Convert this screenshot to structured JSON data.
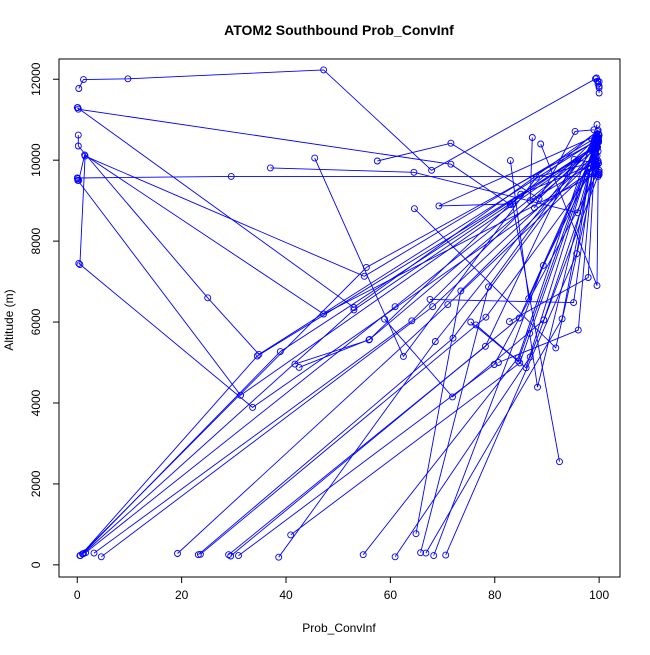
{
  "chart_data": {
    "type": "line",
    "title": "ATOM2 Southbound Prob_ConvInf",
    "xlabel": "Prob_ConvInf",
    "ylabel": "Altitude (m)",
    "xlim": [
      -3.5,
      104
    ],
    "ylim": [
      -300,
      12500
    ],
    "x_ticks": [
      0,
      20,
      40,
      60,
      80,
      100
    ],
    "y_ticks": [
      0,
      2000,
      4000,
      6000,
      8000,
      10000,
      12000
    ],
    "x_tick_labels": [
      "0",
      "20",
      "40",
      "60",
      "80",
      "100"
    ],
    "y_tick_labels": [
      "0",
      "2000",
      "4000",
      "6000",
      "8000",
      "10000",
      "12000"
    ],
    "grid": false,
    "legend": "none",
    "marker": "open-circle",
    "color": "#0000ff",
    "series": [
      {
        "x": [
          0.3,
          1.2,
          9.7,
          47.2,
          67.9,
          99.3,
          99.7,
          99.5,
          100.0,
          99.8,
          100.0,
          100.0,
          100.0
        ],
        "y": [
          11770,
          11990,
          12010,
          12230,
          9750,
          12010,
          11950,
          12030,
          11940,
          11880,
          11830,
          11790,
          11660
        ]
      },
      {
        "x": [
          0.1,
          0.2,
          71.6,
          83.0,
          99.8,
          98.6
        ],
        "y": [
          11300,
          11260,
          9900,
          8900,
          10740,
          10520
        ]
      },
      {
        "x": [
          0.0,
          53.0,
          99.7,
          99.3
        ],
        "y": [
          11300,
          6360,
          10710,
          10500
        ]
      },
      {
        "x": [
          0.2,
          0.2,
          25.0,
          34.8,
          99.8,
          99.9
        ],
        "y": [
          10620,
          10350,
          6600,
          5200,
          10520,
          10480
        ]
      },
      {
        "x": [
          0.1,
          0.1,
          31.3,
          99.0,
          98.7
        ],
        "y": [
          9540,
          9500,
          4190,
          10300,
          10280
        ]
      },
      {
        "x": [
          0.3,
          1.4,
          47.2,
          100.0,
          99.8
        ],
        "y": [
          9500,
          10130,
          6200,
          9700,
          9650
        ]
      },
      {
        "x": [
          0.5,
          1.5,
          55.0,
          99.7,
          99.6
        ],
        "y": [
          7420,
          10100,
          7130,
          10580,
          10430
        ]
      },
      {
        "x": [
          0.3,
          33.6,
          99.2,
          100.0
        ],
        "y": [
          7450,
          3890,
          9800,
          10620
        ]
      },
      {
        "x": [
          0.0,
          29.5,
          99.8,
          100.0
        ],
        "y": [
          9560,
          9600,
          9600,
          9640
        ]
      },
      {
        "x": [
          0.5,
          55.4,
          99.4,
          99.8
        ],
        "y": [
          230,
          7350,
          10470,
          10540
        ]
      },
      {
        "x": [
          0.6,
          34.5,
          99.3,
          99.5
        ],
        "y": [
          230,
          5160,
          10300,
          10280
        ]
      },
      {
        "x": [
          1.0,
          38.9,
          99.2,
          99.9
        ],
        "y": [
          270,
          5270,
          10350,
          10450
        ]
      },
      {
        "x": [
          1.2,
          53.0,
          99.2,
          98.5
        ],
        "y": [
          280,
          6300,
          10350,
          10270
        ]
      },
      {
        "x": [
          1.6,
          60.9,
          99.5,
          99.7
        ],
        "y": [
          300,
          6380,
          10360,
          10320
        ]
      },
      {
        "x": [
          3.2,
          64.1,
          99.3,
          99.1
        ],
        "y": [
          290,
          6030,
          10540,
          10490
        ]
      },
      {
        "x": [
          4.6,
          68.1,
          99.1,
          98.9
        ],
        "y": [
          200,
          6380,
          10120,
          10050
        ]
      },
      {
        "x": [
          19.2,
          71.0,
          99.4,
          99.6
        ],
        "y": [
          280,
          6430,
          9900,
          9860
        ]
      },
      {
        "x": [
          23.2,
          72.0,
          99.0,
          99.3
        ],
        "y": [
          250,
          5600,
          10300,
          10320
        ]
      },
      {
        "x": [
          23.6,
          78.3,
          99.4,
          99.3
        ],
        "y": [
          260,
          6120,
          9830,
          9870
        ]
      },
      {
        "x": [
          29.0,
          78.2,
          95.2,
          99.9
        ],
        "y": [
          250,
          5400,
          10020,
          9920
        ]
      },
      {
        "x": [
          29.4,
          84.7,
          99.2,
          99.8
        ],
        "y": [
          220,
          6100,
          10300,
          10220
        ]
      },
      {
        "x": [
          30.9,
          79.9,
          100.0,
          99.9
        ],
        "y": [
          230,
          4950,
          9750,
          9700
        ]
      },
      {
        "x": [
          38.6,
          68.6,
          99.7,
          99.9
        ],
        "y": [
          190,
          5520,
          10550,
          10560
        ]
      },
      {
        "x": [
          40.9,
          84.8,
          99.7,
          99.8
        ],
        "y": [
          740,
          4990,
          10500,
          10460
        ]
      },
      {
        "x": [
          54.8,
          84.5,
          99.6
        ],
        "y": [
          250,
          5120,
          10880
        ]
      },
      {
        "x": [
          60.9,
          86.8,
          100.0,
          99.9
        ],
        "y": [
          200,
          5140,
          9690,
          9660
        ]
      },
      {
        "x": [
          64.9,
          73.5,
          99.6,
          99.3
        ],
        "y": [
          770,
          6770,
          10110,
          10150
        ]
      },
      {
        "x": [
          65.8,
          78.8,
          99.3
        ],
        "y": [
          300,
          6870,
          10520
        ]
      },
      {
        "x": [
          66.8,
          92.9,
          99.5,
          99.6
        ],
        "y": [
          290,
          6080,
          10600,
          10560
        ]
      },
      {
        "x": [
          68.3,
          89.3,
          99.3,
          99.2
        ],
        "y": [
          230,
          7400,
          10010,
          9950
        ]
      },
      {
        "x": [
          70.6,
          95.7,
          98.2,
          97.8
        ],
        "y": [
          240,
          7690,
          9700,
          9810
        ]
      },
      {
        "x": [
          80.7,
          96.0,
          98.9
        ],
        "y": [
          5000,
          5800,
          10060
        ]
      },
      {
        "x": [
          92.4,
          83.4,
          69.3,
          99.9
        ],
        "y": [
          2550,
          8920,
          8870,
          10630
        ]
      },
      {
        "x": [
          57.5,
          71.6,
          88.5,
          99.8
        ],
        "y": [
          9980,
          10420,
          9050,
          10450
        ]
      },
      {
        "x": [
          37.0,
          64.5,
          95.9,
          99.7
        ],
        "y": [
          9810,
          9700,
          8700,
          10460
        ]
      },
      {
        "x": [
          45.5,
          62.5,
          88.0,
          99.8
        ],
        "y": [
          10050,
          5150,
          9580,
          9980
        ]
      },
      {
        "x": [
          42.5,
          56.0,
          85.0,
          99.7
        ],
        "y": [
          4880,
          5570,
          9160,
          9950
        ]
      },
      {
        "x": [
          41.7,
          55.9,
          99.5
        ],
        "y": [
          4960,
          5560,
          10300
        ]
      },
      {
        "x": [
          58.9,
          71.9,
          89.4,
          99.4
        ],
        "y": [
          6070,
          4150,
          6050,
          9870
        ]
      },
      {
        "x": [
          64.6,
          91.7,
          99.6
        ],
        "y": [
          8800,
          5360,
          9900
        ]
      },
      {
        "x": [
          67.6,
          95.1,
          99.4
        ],
        "y": [
          6560,
          6480,
          10410
        ]
      },
      {
        "x": [
          75.4,
          86.0,
          99.3
        ],
        "y": [
          6000,
          4870,
          10420
        ]
      },
      {
        "x": [
          83.0,
          86.5,
          99.6
        ],
        "y": [
          9990,
          6580,
          10330
        ]
      },
      {
        "x": [
          82.8,
          97.9,
          99.2
        ],
        "y": [
          6010,
          7100,
          10200
        ]
      },
      {
        "x": [
          76.4,
          84.5,
          98.7
        ],
        "y": [
          5930,
          5040,
          10230
        ]
      },
      {
        "x": [
          86.7,
          88.2,
          99.5
        ],
        "y": [
          5720,
          4390,
          10380
        ]
      },
      {
        "x": [
          87.2,
          86.8,
          99.4
        ],
        "y": [
          10560,
          9000,
          9950
        ]
      },
      {
        "x": [
          87.6,
          95.4,
          99.0
        ],
        "y": [
          8820,
          10710,
          10750
        ]
      },
      {
        "x": [
          88.8,
          99.6,
          99.9
        ],
        "y": [
          10400,
          6900,
          10650
        ]
      }
    ]
  }
}
